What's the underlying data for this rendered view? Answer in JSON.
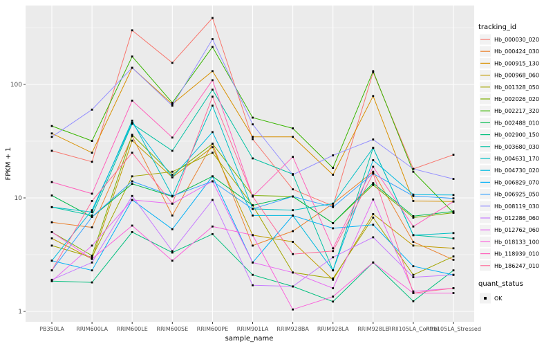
{
  "chart_data": {
    "type": "line",
    "title": "",
    "xlabel": "sample_name",
    "ylabel": "FPKM + 1",
    "y_scale": "log10",
    "ylim": [
      1,
      490
    ],
    "y_tick_labels": [
      "1",
      "10",
      "100"
    ],
    "y_tick_values": [
      1,
      10,
      100
    ],
    "y_minor_values": [
      3.162,
      31.62,
      316.2
    ],
    "grid": "on",
    "panel_bg": "#EBEBEB",
    "grid_color": "#FFFFFF",
    "tick_color": "#333333",
    "tick_label_color": "#4D4D4D",
    "axis_title_color": "#000000",
    "point_color": "#000000",
    "point_shape": "square",
    "legend_position": "right",
    "legend_key_bg": "#F2F2F2",
    "categories": [
      "PB350LA",
      "RRIM600LA",
      "RRIM600LE",
      "RRIM600SE",
      "RRIM600PE",
      "RRIM901LA",
      "RRIM928BA",
      "RRIM928LA",
      "RRIM928LE",
      "RRII105LA_Control",
      "RRII105LA_Stressed"
    ],
    "legend_titles": {
      "series": "tracking_id",
      "quant": "quant_status"
    },
    "quant_status_items": [
      {
        "label": "OK",
        "marker": "black-square"
      }
    ],
    "series": [
      {
        "name": "Hb_000030_020",
        "color": "#F8766D",
        "values": [
          26,
          20.8,
          300,
          155,
          385,
          33,
          11.9,
          8.5,
          128,
          18,
          24
        ]
      },
      {
        "name": "Hb_000424_030",
        "color": "#EA8331",
        "values": [
          6.1,
          5.5,
          35,
          7.0,
          30,
          3.8,
          5.1,
          8.9,
          17,
          4.1,
          2.85
        ]
      },
      {
        "name": "Hb_000915_130",
        "color": "#D89000",
        "values": [
          37,
          25,
          140,
          67,
          131,
          34.5,
          34.5,
          16,
          79,
          9.4,
          9.3
        ]
      },
      {
        "name": "Hb_000968_060",
        "color": "#C09B00",
        "values": [
          4.4,
          2.9,
          32,
          15.2,
          28,
          4.7,
          4.1,
          1.9,
          7.2,
          3.8,
          3.6
        ]
      },
      {
        "name": "Hb_001328_050",
        "color": "#A3A500",
        "values": [
          3.8,
          3.0,
          15.5,
          17,
          25,
          8.6,
          2.2,
          1.95,
          6.7,
          2.1,
          3.05
        ]
      },
      {
        "name": "Hb_002026_020",
        "color": "#7CAE00",
        "values": [
          5.0,
          3.1,
          36,
          16,
          30,
          10.5,
          10.3,
          6.0,
          13,
          6.7,
          7.4
        ]
      },
      {
        "name": "Hb_002217_320",
        "color": "#39B600",
        "values": [
          43,
          31.8,
          176,
          69,
          214,
          51,
          41,
          18.4,
          131,
          17,
          7.4
        ]
      },
      {
        "name": "Hb_002488_010",
        "color": "#00BB4E",
        "values": [
          10.5,
          6.8,
          13.3,
          10.3,
          15.5,
          8.6,
          10.3,
          6.0,
          13.5,
          6.9,
          7.6
        ]
      },
      {
        "name": "Hb_002900_150",
        "color": "#00BF7D",
        "values": [
          1.85,
          1.8,
          5.0,
          3.3,
          4.8,
          2.1,
          1.66,
          1.22,
          2.7,
          1.23,
          2.3
        ]
      },
      {
        "name": "Hb_003680_030",
        "color": "#00C1A3",
        "values": [
          8.3,
          7.0,
          45,
          26,
          90,
          22.3,
          16.2,
          2.3,
          27.6,
          4.7,
          4.4
        ]
      },
      {
        "name": "Hb_004631_170",
        "color": "#00BFC4",
        "values": [
          8.3,
          7.5,
          48,
          10.4,
          65,
          8.0,
          7.8,
          8.9,
          27.6,
          4.7,
          4.9
        ]
      },
      {
        "name": "Hb_004730_020",
        "color": "#00BAE0",
        "values": [
          2.8,
          7.8,
          46,
          15.2,
          38,
          7.0,
          7.0,
          2.3,
          21.5,
          10.7,
          10.6
        ]
      },
      {
        "name": "Hb_006829_070",
        "color": "#00B0F6",
        "values": [
          2.8,
          2.3,
          9.6,
          5.3,
          15.5,
          2.7,
          7.0,
          5.4,
          5.8,
          2.5,
          2.1
        ]
      },
      {
        "name": "Hb_006925_050",
        "color": "#35A2FF",
        "values": [
          2.3,
          6.8,
          14,
          10.4,
          14,
          8.0,
          10.3,
          8.3,
          16.4,
          10.4,
          9.9
        ]
      },
      {
        "name": "Hb_008119_030",
        "color": "#9590FF",
        "values": [
          34.5,
          60,
          140,
          65,
          251,
          44.5,
          16,
          23.7,
          32.7,
          18,
          14.7
        ]
      },
      {
        "name": "Hb_012286_060",
        "color": "#C77CFF",
        "values": [
          1.9,
          2.7,
          10.4,
          3.4,
          9.6,
          1.7,
          1.66,
          3.0,
          4.5,
          2.0,
          2.1
        ]
      },
      {
        "name": "Hb_012762_060",
        "color": "#E76BF3",
        "values": [
          1.85,
          3.8,
          9.6,
          8.9,
          14,
          2.7,
          2.2,
          1.6,
          9.7,
          1.5,
          1.6
        ]
      },
      {
        "name": "Hb_018133_100",
        "color": "#FA62DB",
        "values": [
          5.0,
          2.9,
          5.7,
          2.8,
          5.6,
          4.7,
          1.04,
          1.35,
          2.7,
          1.45,
          1.45
        ]
      },
      {
        "name": "Hb_118939_010",
        "color": "#FF62BC",
        "values": [
          13.8,
          10.9,
          72,
          34,
          109,
          10.3,
          23,
          3.6,
          18.8,
          5.6,
          9.3
        ]
      },
      {
        "name": "Hb_186247_010",
        "color": "#FF6A98",
        "values": [
          2.3,
          9.4,
          25,
          8.9,
          78,
          10.3,
          3.2,
          3.4,
          16.4,
          1.45,
          1.6
        ]
      }
    ]
  }
}
